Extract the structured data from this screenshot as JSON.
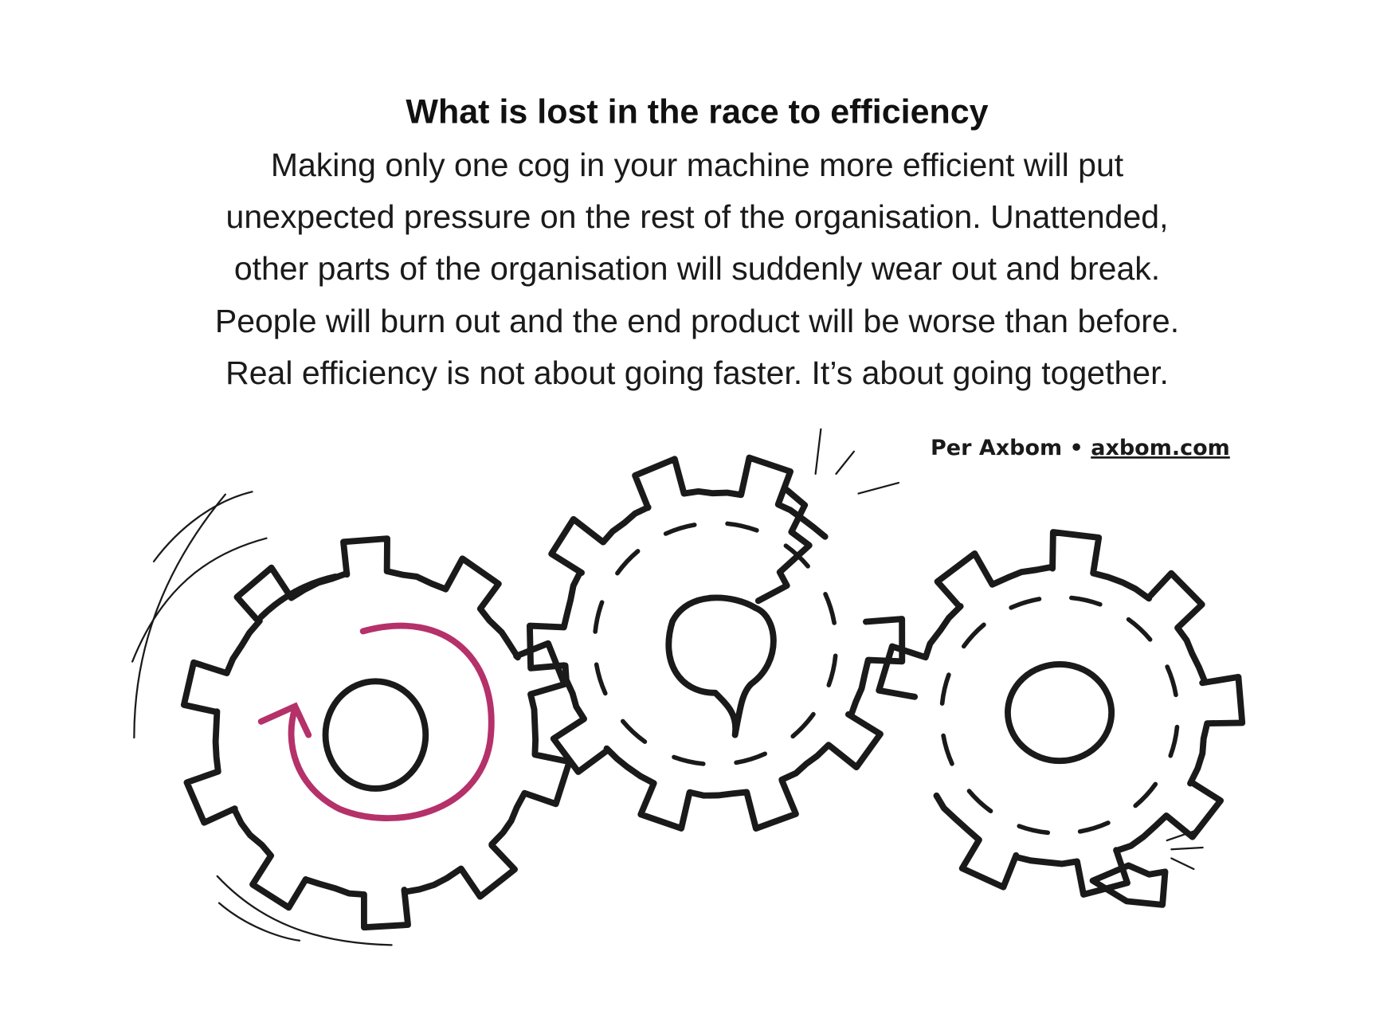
{
  "title": "What is lost in the race to efficiency",
  "body": [
    "Making only one cog in your machine more efficient will put",
    "unexpected pressure on the rest of the organisation. Unattended,",
    "other parts of the organisation will suddenly wear out and break.",
    "People will burn out and the end product will be worse than before.",
    "Real efficiency is not about going faster. It’s about going together."
  ],
  "credit": {
    "author": "Per Axbom",
    "separator": "•",
    "link": "axbom.com"
  }
}
